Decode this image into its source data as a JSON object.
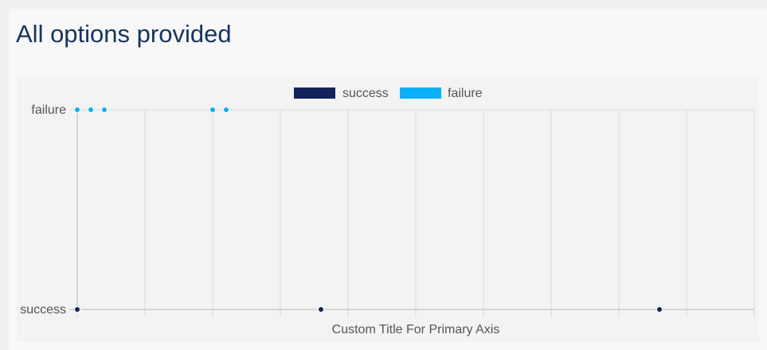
{
  "page": {
    "title": "All options provided"
  },
  "colors": {
    "success": "#14225a",
    "failure": "#0ab0f7",
    "grid": "#d9d9d9",
    "axis": "#c4c4c4",
    "text": "#555555"
  },
  "chart_data": {
    "type": "scatter",
    "title": "",
    "xlabel": "Custom Title For Primary Axis",
    "ylabel": "",
    "y_categories": [
      "success",
      "failure"
    ],
    "xlim": [
      0,
      10
    ],
    "x_ticks": 11,
    "x_tick_labels": [],
    "grid": true,
    "legend_position": "top-center",
    "series": [
      {
        "name": "success",
        "color": "#14225a",
        "points": [
          {
            "x": 0.0,
            "y": "success"
          },
          {
            "x": 3.6,
            "y": "success"
          },
          {
            "x": 8.6,
            "y": "success"
          }
        ]
      },
      {
        "name": "failure",
        "color": "#0ab0f7",
        "points": [
          {
            "x": 0.0,
            "y": "failure"
          },
          {
            "x": 0.2,
            "y": "failure"
          },
          {
            "x": 0.4,
            "y": "failure"
          },
          {
            "x": 2.0,
            "y": "failure"
          },
          {
            "x": 2.2,
            "y": "failure"
          }
        ]
      }
    ]
  }
}
